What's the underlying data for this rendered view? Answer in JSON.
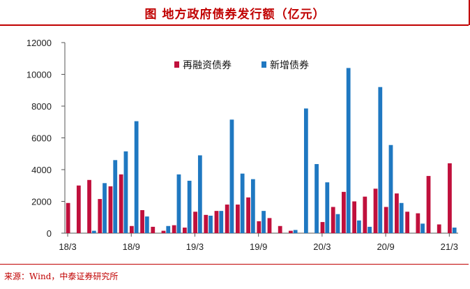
{
  "title": "图 地方政府债券发行额（亿元）",
  "source": "来源：Wind，中泰证券研究所",
  "colors": {
    "refinance": "#C0103C",
    "new": "#1F78C1",
    "accent": "#C00000"
  },
  "chart_data": {
    "type": "bar",
    "title": "图 地方政府债券发行额（亿元）",
    "xlabel": "",
    "ylabel": "",
    "ylim": [
      0,
      12000
    ],
    "yticks": [
      "0",
      "2000",
      "4000",
      "6000",
      "8000",
      "10000",
      "12000"
    ],
    "yticks_values": [
      0,
      2000,
      4000,
      6000,
      8000,
      10000,
      12000
    ],
    "x_tick_labels": [
      {
        "label": "18/3",
        "index": 0
      },
      {
        "label": "18/9",
        "index": 6
      },
      {
        "label": "19/3",
        "index": 12
      },
      {
        "label": "19/9",
        "index": 18
      },
      {
        "label": "20/3",
        "index": 24
      },
      {
        "label": "20/9",
        "index": 30
      },
      {
        "label": "21/3",
        "index": 36
      }
    ],
    "legend_position": "top-center",
    "grid": false,
    "categories": [
      "2018-03",
      "2018-04",
      "2018-05",
      "2018-06",
      "2018-07",
      "2018-08",
      "2018-09",
      "2018-10",
      "2018-11",
      "2018-12",
      "2019-01",
      "2019-02",
      "2019-03",
      "2019-04",
      "2019-05",
      "2019-06",
      "2019-07",
      "2019-08",
      "2019-09",
      "2019-10",
      "2019-11",
      "2019-12",
      "2020-01",
      "2020-02",
      "2020-03",
      "2020-04",
      "2020-05",
      "2020-06",
      "2020-07",
      "2020-08",
      "2020-09",
      "2020-10",
      "2020-11",
      "2020-12",
      "2021-01",
      "2021-02",
      "2021-03"
    ],
    "series": [
      {
        "name": "再融资债券",
        "color": "#C0103C",
        "values": [
          1900,
          3000,
          3350,
          2150,
          2950,
          3700,
          450,
          1450,
          400,
          150,
          500,
          350,
          1350,
          1150,
          1400,
          1800,
          1800,
          2250,
          750,
          950,
          450,
          150,
          0,
          0,
          700,
          1650,
          2600,
          2000,
          2300,
          2800,
          1650,
          2500,
          1350,
          1250,
          3600,
          550,
          4400
        ]
      },
      {
        "name": "新增债券",
        "color": "#1F78C1",
        "values": [
          0,
          0,
          150,
          3150,
          4600,
          5150,
          7050,
          1050,
          0,
          450,
          3700,
          3300,
          4900,
          1100,
          1400,
          7150,
          3750,
          3400,
          1400,
          0,
          0,
          200,
          7850,
          4350,
          3200,
          1200,
          10400,
          800,
          400,
          9200,
          5550,
          1900,
          0,
          600,
          0,
          0,
          350
        ]
      }
    ]
  }
}
